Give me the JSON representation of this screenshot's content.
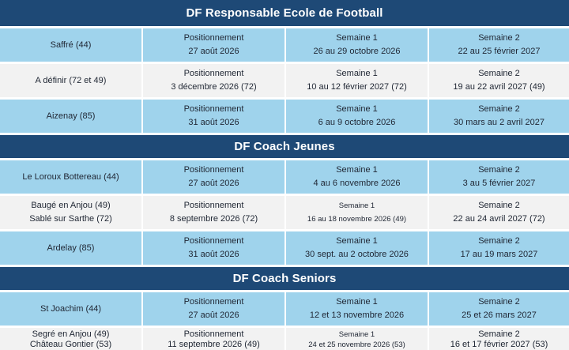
{
  "colors": {
    "header_bg": "#1E4976",
    "header_text": "#FFFFFF",
    "row_light": "#9FD3EC",
    "row_alt": "#F2F2F2",
    "cell_text": "#1F2633"
  },
  "table": {
    "sections": [
      {
        "title": "DF Responsable Ecole de Football",
        "rows": [
          {
            "site": [
              "Saffré (44)"
            ],
            "pos": [
              "Positionnement",
              "27 août 2026"
            ],
            "s1": [
              "Semaine 1",
              "26 au 29 octobre 2026"
            ],
            "s2": [
              "Semaine 2",
              "22 au 25 février 2027"
            ]
          },
          {
            "site": [
              "A définir (72 et 49)"
            ],
            "pos": [
              "Positionnement",
              "3 décembre 2026 (72)"
            ],
            "s1": [
              "Semaine 1",
              "10 au 12 février 2027 (72)"
            ],
            "s2": [
              "Semaine 2",
              "19 au 22 avril 2027 (49)"
            ]
          },
          {
            "site": [
              "Aizenay (85)"
            ],
            "pos": [
              "Positionnement",
              "31 août 2026"
            ],
            "s1": [
              "Semaine 1",
              "6 au 9 octobre 2026"
            ],
            "s2": [
              "Semaine 2",
              "30 mars au 2 avril 2027"
            ]
          }
        ]
      },
      {
        "title": "DF Coach Jeunes",
        "rows": [
          {
            "site": [
              "Le Loroux Bottereau (44)"
            ],
            "pos": [
              "Positionnement",
              "27 août 2026"
            ],
            "s1": [
              "Semaine 1",
              "4 au 6 novembre 2026"
            ],
            "s2": [
              "Semaine 2",
              "3 au 5 février 2027"
            ]
          },
          {
            "site": [
              "Baugé en Anjou (49)",
              "Sablé sur Sarthe (72)"
            ],
            "pos": [
              "Positionnement",
              "8 septembre 2026 (72)"
            ],
            "s1": [
              "Semaine 1",
              "16 au 18 novembre 2026 (49)"
            ],
            "s2": [
              "Semaine 2",
              "22 au 24 avril 2027 (72)"
            ]
          },
          {
            "site": [
              "Ardelay (85)"
            ],
            "pos": [
              "Positionnement",
              "31 août 2026"
            ],
            "s1": [
              "Semaine 1",
              "30 sept. au 2 octobre 2026"
            ],
            "s2": [
              "Semaine 2",
              "17 au 19 mars 2027"
            ]
          }
        ]
      },
      {
        "title": "DF Coach Seniors",
        "rows": [
          {
            "site": [
              "St Joachim (44)"
            ],
            "pos": [
              "Positionnement",
              "27 août 2026"
            ],
            "s1": [
              "Semaine 1",
              "12 et 13 novembre 2026"
            ],
            "s2": [
              "Semaine 2",
              "25 et 26 mars 2027"
            ]
          },
          {
            "site": [
              "Segré en Anjou (49)",
              "Château Gontier (53)"
            ],
            "pos": [
              "Positionnement",
              "11 septembre 2026 (49)"
            ],
            "s1": [
              "Semaine 1",
              "24 et 25 novembre 2026 (53)"
            ],
            "s2": [
              "Semaine 2",
              "16 et 17 février 2027 (53)"
            ]
          }
        ]
      }
    ]
  }
}
